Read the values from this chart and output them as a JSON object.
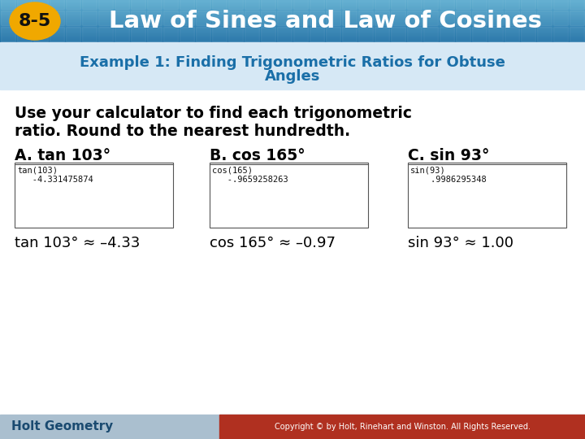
{
  "title_badge": "8-5",
  "title_text": "Law of Sines and Law of Cosines",
  "header_bg_top": "#4a9ac8",
  "header_bg_bot": "#1a6090",
  "badge_color": "#f0a800",
  "subtitle_line1": "Example 1: Finding Trigonometric Ratios for Obtuse",
  "subtitle_line2": "Angles",
  "subtitle_color": "#1a6fa8",
  "subtitle_bg": "#ddeaf5",
  "body_bg": "#ffffff",
  "body_text_line1": "Use your calculator to find each trigonometric",
  "body_text_line2": "ratio. Round to the nearest hundredth.",
  "label_A": "A. tan 103°",
  "label_B": "B. cos 165°",
  "label_C": "C. sin 93°",
  "calc_A_line1": "tan(103)",
  "calc_A_line2": "   -4.331475874",
  "calc_B_line1": "cos(165)",
  "calc_B_line2": "   -.9659258263",
  "calc_C_line1": "sin(93)",
  "calc_C_line2": "    .9986295348",
  "result_A": "tan 103° ≈ –4.33",
  "result_B": "cos 165° ≈ –0.97",
  "result_C": "sin 93° ≈ 1.00",
  "footer_text": "Holt Geometry",
  "footer_bg": "#aabfcf",
  "copyright_text": "Copyright © by Holt, Rinehart and Winston. All Rights Reserved.",
  "copyright_bg": "#b03020"
}
